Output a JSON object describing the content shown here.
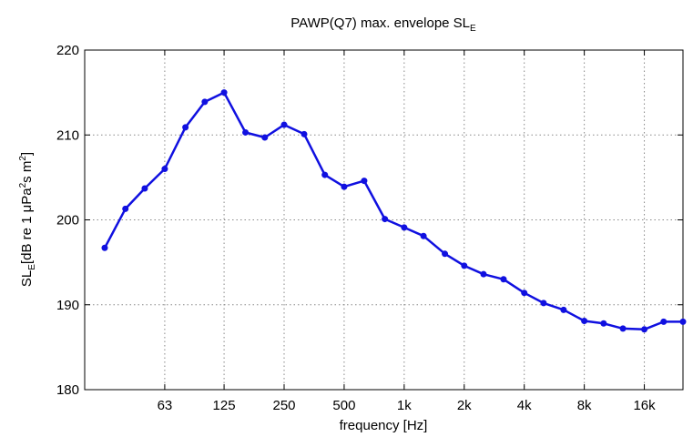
{
  "chart_data": {
    "type": "line",
    "title_main": "PAWP(Q7) max. envelope SL",
    "title_sub": "E",
    "xlabel": "frequency [Hz]",
    "ylabel_parts": {
      "p1": "SL",
      "s1": "E",
      "p2": "[dB re 1 μPa",
      "s2": "2",
      "p3": "s m",
      "s3": "2",
      "p4": "]"
    },
    "x_scale": "log",
    "xlim": [
      25,
      25000
    ],
    "ylim": [
      180,
      220
    ],
    "x_ticks": [
      63,
      125,
      250,
      500,
      1000,
      2000,
      4000,
      8000,
      16000
    ],
    "x_tick_labels": [
      "63",
      "125",
      "250",
      "500",
      "1k",
      "2k",
      "4k",
      "8k",
      "16k"
    ],
    "y_ticks": [
      180,
      190,
      200,
      210,
      220
    ],
    "y_tick_labels": [
      "180",
      "190",
      "200",
      "210",
      "220"
    ],
    "grid": true,
    "line_color": "#1010e0",
    "series": [
      {
        "x": [
          31.5,
          40,
          50,
          63,
          80,
          100,
          125,
          160,
          200,
          250,
          315,
          400,
          500,
          630,
          800,
          1000,
          1250,
          1600,
          2000,
          2500,
          3150,
          4000,
          5000,
          6300,
          8000,
          10000,
          12500,
          16000,
          20000,
          25000
        ],
        "y": [
          196.7,
          201.3,
          203.7,
          206.0,
          210.9,
          213.9,
          215.0,
          210.3,
          209.7,
          211.2,
          210.1,
          205.3,
          203.9,
          204.6,
          200.1,
          199.1,
          198.1,
          196.0,
          194.6,
          193.6,
          193.0,
          191.4,
          190.2,
          189.4,
          188.1,
          187.8,
          187.2,
          187.1,
          188.0,
          188.0
        ]
      }
    ]
  }
}
